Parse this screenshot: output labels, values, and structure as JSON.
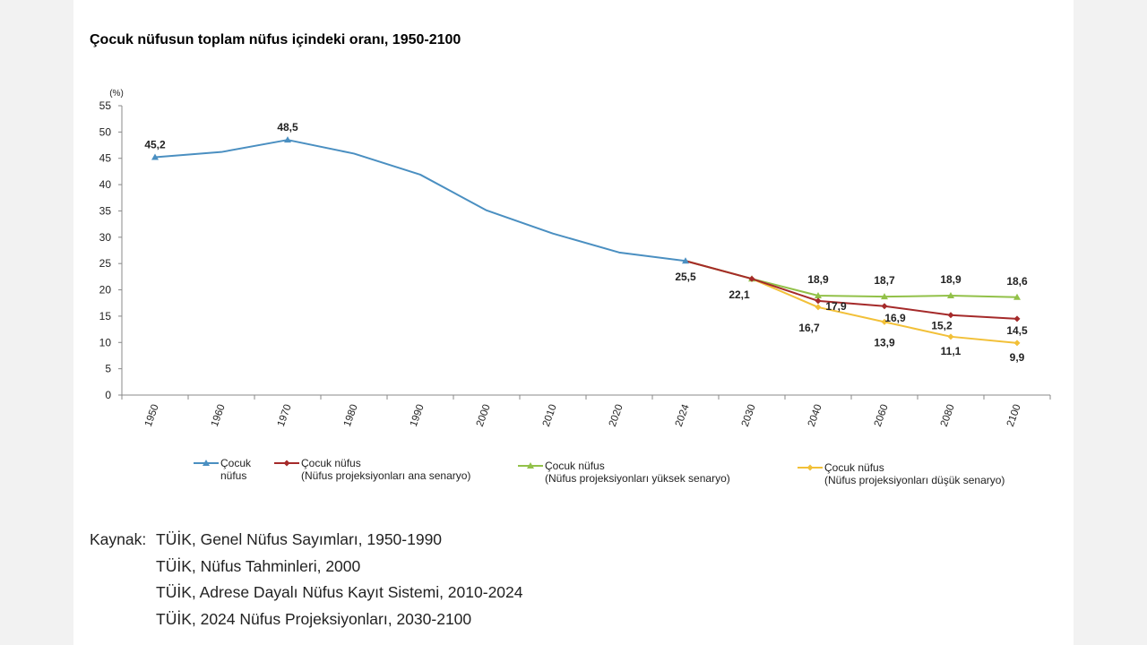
{
  "chart_data": {
    "type": "line",
    "title": "Çocuk nüfusun toplam nüfus içindeki oranı, 1950-2100",
    "ylabel": "(%)",
    "xlabel": "",
    "ylim": [
      0,
      55
    ],
    "yticks": [
      0,
      5,
      10,
      15,
      20,
      25,
      30,
      35,
      40,
      45,
      50,
      55
    ],
    "categories": [
      "1950",
      "1960",
      "1970",
      "1980",
      "1990",
      "2000",
      "2010",
      "2020",
      "2024",
      "2030",
      "2040",
      "2060",
      "2080",
      "2100"
    ],
    "series": [
      {
        "name": "Çocuk nüfus",
        "legend_lines": [
          "Çocuk",
          "nüfus"
        ],
        "color": "#4a8fc1",
        "marker": "triangle",
        "values": [
          45.2,
          46.2,
          48.5,
          45.9,
          41.9,
          35.1,
          30.7,
          27.1,
          25.5,
          null,
          null,
          null,
          null,
          null
        ],
        "labels": [
          "45,2",
          null,
          "48,5",
          null,
          null,
          null,
          null,
          null,
          "25,5",
          null,
          null,
          null,
          null,
          null
        ]
      },
      {
        "name": "Çocuk nüfus (Nüfus projeksiyonları ana senaryo)",
        "legend_lines": [
          "Çocuk nüfus",
          "(Nüfus projeksiyonları ana senaryo)"
        ],
        "color": "#a52a2a",
        "marker": "diamond",
        "values": [
          null,
          null,
          null,
          null,
          null,
          null,
          null,
          null,
          25.5,
          22.1,
          17.9,
          16.9,
          15.2,
          14.5
        ],
        "labels": [
          null,
          null,
          null,
          null,
          null,
          null,
          null,
          null,
          null,
          "22,1",
          "17,9",
          "16,9",
          "15,2",
          "14,5"
        ]
      },
      {
        "name": "Çocuk nüfus (Nüfus projeksiyonları yüksek senaryo)",
        "legend_lines": [
          "Çocuk nüfus",
          "(Nüfus projeksiyonları yüksek senaryo)"
        ],
        "color": "#92c149",
        "marker": "triangle",
        "values": [
          null,
          null,
          null,
          null,
          null,
          null,
          null,
          null,
          25.5,
          22.1,
          18.9,
          18.7,
          18.9,
          18.6
        ],
        "labels": [
          null,
          null,
          null,
          null,
          null,
          null,
          null,
          null,
          null,
          null,
          "18,9",
          "18,7",
          "18,9",
          "18,6"
        ]
      },
      {
        "name": "Çocuk nüfus (Nüfus projeksiyonları düşük senaryo)",
        "legend_lines": [
          "Çocuk nüfus",
          "(Nüfus projeksiyonları düşük senaryo)"
        ],
        "color": "#f2c038",
        "marker": "diamond",
        "values": [
          null,
          null,
          null,
          null,
          null,
          null,
          null,
          null,
          25.5,
          22.1,
          16.7,
          13.9,
          11.1,
          9.9
        ],
        "labels": [
          null,
          null,
          null,
          null,
          null,
          null,
          null,
          null,
          null,
          null,
          "16,7",
          "13,9",
          "11,1",
          "9,9"
        ]
      }
    ],
    "legend_position": "bottom"
  },
  "source": {
    "label": "Kaynak:",
    "lines": [
      "TÜİK, Genel Nüfus Sayımları, 1950-1990",
      "TÜİK, Nüfus Tahminleri, 2000",
      "TÜİK, Adrese Dayalı Nüfus Kayıt Sistemi, 2010-2024",
      "TÜİK, 2024 Nüfus Projeksiyonları, 2030-2100"
    ]
  }
}
